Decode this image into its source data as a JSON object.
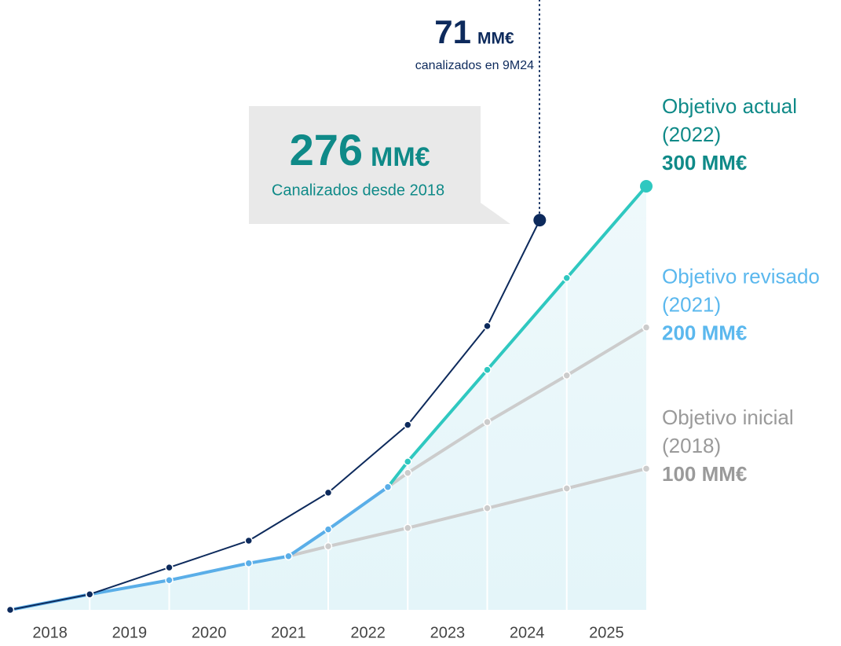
{
  "chart_data": {
    "type": "line",
    "xlim": [
      2018,
      2026
    ],
    "ylim": [
      0,
      300
    ],
    "xticks": [
      {
        "value": 2018.5,
        "label": "2018"
      },
      {
        "value": 2019.5,
        "label": "2019"
      },
      {
        "value": 2020.5,
        "label": "2020"
      },
      {
        "value": 2021.5,
        "label": "2021"
      },
      {
        "value": 2022.5,
        "label": "2022"
      },
      {
        "value": 2023.5,
        "label": "2023"
      },
      {
        "value": 2024.5,
        "label": "2024"
      },
      {
        "value": 2025.5,
        "label": "2025"
      }
    ],
    "series": [
      {
        "name": "Objetivo inicial",
        "color": "#cccccc",
        "label_color": "#9a9a9a",
        "label_year": "(2018)",
        "label_value": "100 MM€",
        "x": [
          2021.5,
          2022,
          2023,
          2024,
          2025,
          2026
        ],
        "values": [
          38,
          45,
          58,
          72,
          86,
          100
        ]
      },
      {
        "name": "Objetivo revisado",
        "color": "#cccccc",
        "label_color": "#5bb8ee",
        "label_year": "(2021)",
        "label_value": "200 MM€",
        "x": [
          2022.75,
          2023,
          2024,
          2025,
          2026
        ],
        "values": [
          87,
          97,
          133,
          166,
          200
        ]
      },
      {
        "name": "Objetivo actual",
        "color": "#2fc8c0",
        "label_color": "#0f8a88",
        "label_year": "(2022)",
        "label_value": "300 MM€",
        "x": [
          2022.75,
          2023,
          2024,
          2025,
          2026
        ],
        "values": [
          87,
          105,
          170,
          235,
          300
        ]
      },
      {
        "color": "#5aaee8",
        "x": [
          2018,
          2019,
          2020,
          2021,
          2021.5,
          2022,
          2022.75
        ],
        "values": [
          0,
          11,
          21,
          33,
          38,
          57,
          87
        ]
      },
      {
        "color": "#0d2a5c",
        "x": [
          2018,
          2019,
          2020,
          2021,
          2022,
          2023,
          2024,
          2024.66
        ],
        "values": [
          0,
          11,
          30,
          49,
          83,
          131,
          201,
          276
        ]
      }
    ],
    "annotations": {
      "latest_value": "71",
      "latest_unit": "MM€",
      "latest_text": "canalizados en 9M24",
      "total_value": "276",
      "total_unit": "MM€",
      "total_text": "Canalizados desde 2018"
    }
  }
}
